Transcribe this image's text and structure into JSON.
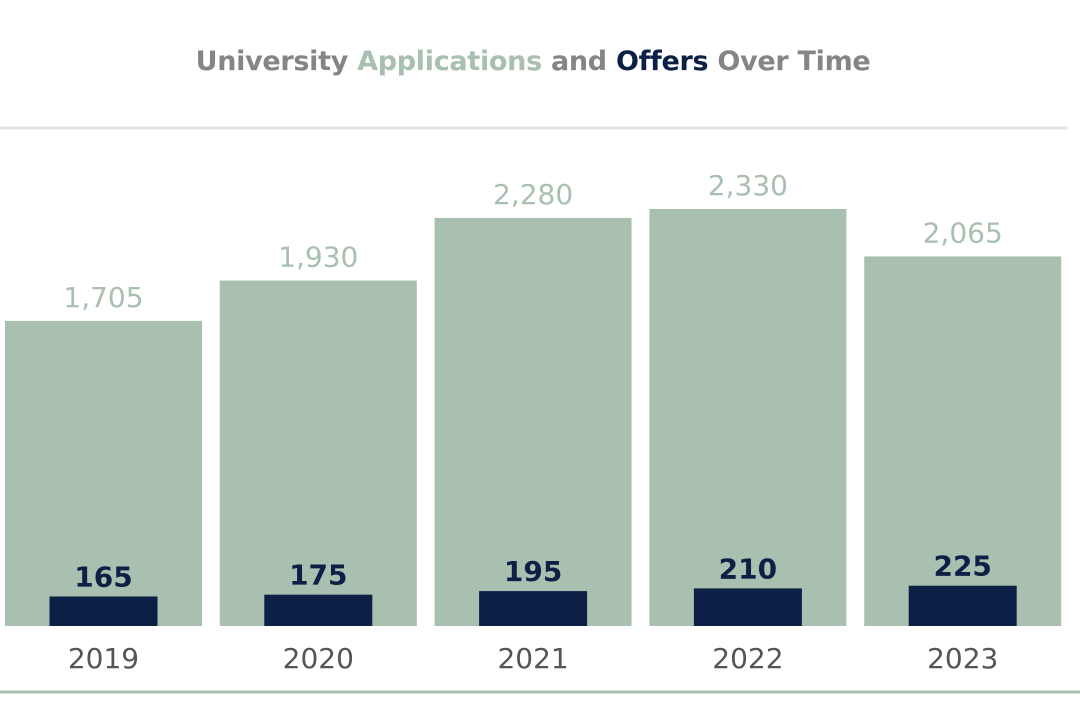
{
  "title": {
    "part1": "University",
    "part2": "Applications",
    "part3": "and",
    "part4": "Offers",
    "part5": "Over Time"
  },
  "colors": {
    "applications": "#a9c0b0",
    "offers": "#0c1f45",
    "title_gray": "#858585",
    "tick_text": "#555555",
    "rule_top": "#e3e3e3",
    "rule_bottom": "#a9c0b0"
  },
  "chart_data": {
    "type": "bar",
    "title": "University Applications and Offers Over Time",
    "categories": [
      "2019",
      "2020",
      "2021",
      "2022",
      "2023"
    ],
    "series": [
      {
        "name": "Applications",
        "values": [
          1705,
          1930,
          2280,
          2330,
          2065
        ],
        "labels": [
          "1,705",
          "1,930",
          "2,280",
          "2,330",
          "2,065"
        ]
      },
      {
        "name": "Offers",
        "values": [
          165,
          175,
          195,
          210,
          225
        ],
        "labels": [
          "165",
          "175",
          "195",
          "210",
          "225"
        ]
      }
    ],
    "xlabel": "",
    "ylabel": "",
    "ylim": [
      0,
      2330
    ],
    "grid": false,
    "legend": "none"
  }
}
